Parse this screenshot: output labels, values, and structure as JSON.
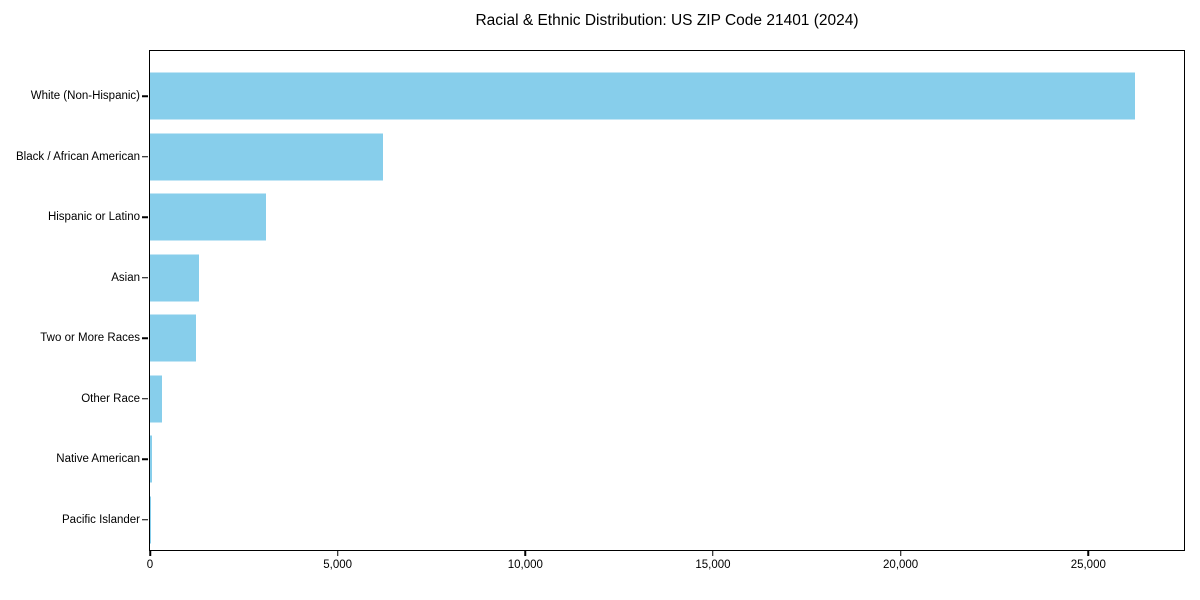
{
  "page": {
    "background": "#ffffff"
  },
  "chart_data": {
    "type": "bar",
    "orientation": "horizontal",
    "title": "Racial & Ethnic Distribution: US ZIP Code 21401 (2024)",
    "categories": [
      "White (Non-Hispanic)",
      "Black / African American",
      "Hispanic or Latino",
      "Asian",
      "Two or More Races",
      "Other Race",
      "Native American",
      "Pacific Islander"
    ],
    "values": [
      26250,
      6200,
      3100,
      1300,
      1230,
      310,
      45,
      20
    ],
    "xlabel": "",
    "ylabel": "",
    "xlim": [
      0,
      27550
    ],
    "xticks": [
      0,
      5000,
      10000,
      15000,
      20000,
      25000
    ],
    "xtick_labels": [
      "0",
      "5,000",
      "10,000",
      "15,000",
      "20,000",
      "25,000"
    ],
    "bar_color": "#87ceeb",
    "axis_color": "#000000",
    "text_color": "#000000",
    "grid": false,
    "legend": null
  }
}
